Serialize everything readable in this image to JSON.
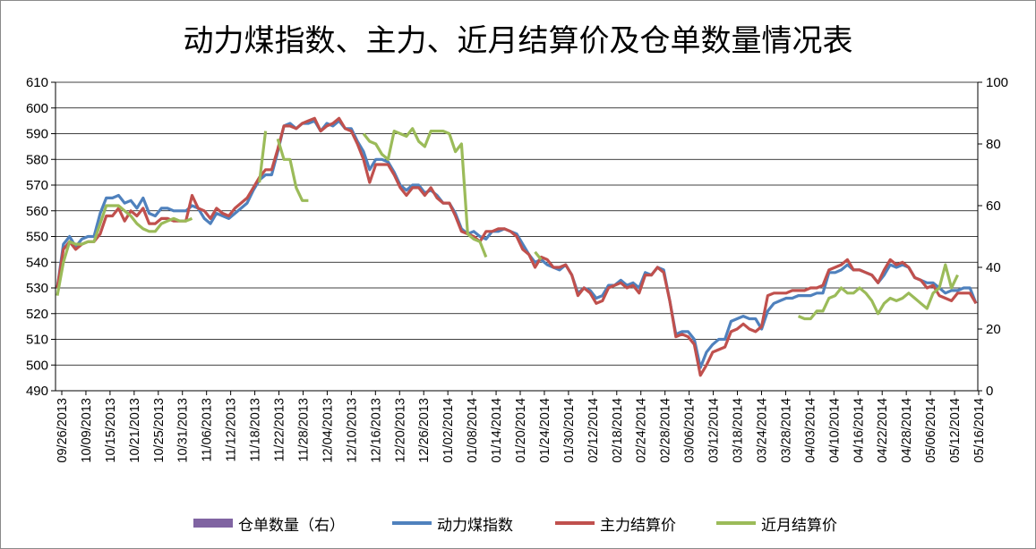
{
  "chart_data": {
    "type": "line",
    "title": "动力煤指数、主力、近月结算价及仓单数量情况表",
    "y_left": {
      "min": 490,
      "max": 610,
      "step": 10
    },
    "y_right": {
      "min": 0,
      "max": 100,
      "step": 20
    },
    "grid": true,
    "legend_position": "bottom",
    "x_labels": [
      "09/26/2013",
      "10/09/2013",
      "10/15/2013",
      "10/21/2013",
      "10/25/2013",
      "10/31/2013",
      "11/06/2013",
      "11/12/2013",
      "11/18/2013",
      "11/22/2013",
      "11/28/2013",
      "12/04/2013",
      "12/10/2013",
      "12/16/2013",
      "12/20/2013",
      "12/26/2013",
      "01/02/2014",
      "01/08/2014",
      "01/14/2014",
      "01/20/2014",
      "01/24/2014",
      "01/30/2014",
      "02/12/2014",
      "02/18/2014",
      "02/24/2014",
      "02/28/2014",
      "03/06/2014",
      "03/12/2014",
      "03/18/2014",
      "03/24/2014",
      "03/28/2014",
      "04/03/2014",
      "04/10/2014",
      "04/16/2014",
      "04/22/2014",
      "04/28/2014",
      "05/06/2014",
      "05/12/2014",
      "05/16/2014"
    ],
    "series": [
      {
        "name": "仓单数量（右）",
        "axis": "right",
        "color": "#8064A2",
        "values": []
      },
      {
        "name": "动力煤指数",
        "axis": "left",
        "color": "#4F81BD",
        "values": [
          530,
          547,
          550,
          546,
          549,
          550,
          550,
          559,
          565,
          565,
          566,
          563,
          564,
          561,
          565,
          559,
          558,
          561,
          561,
          560,
          560,
          560,
          562,
          561,
          557,
          555,
          559,
          558,
          557,
          559,
          561,
          563,
          568,
          572,
          574,
          574,
          583,
          593,
          594,
          592,
          594,
          594,
          595,
          591,
          594,
          593,
          595,
          592,
          592,
          587,
          583,
          576,
          580,
          580,
          579,
          575,
          570,
          568,
          570,
          570,
          567,
          568,
          566,
          563,
          563,
          559,
          553,
          551,
          552,
          550,
          549,
          552,
          552,
          553,
          552,
          551,
          547,
          543,
          540,
          541,
          539,
          538,
          537,
          539,
          535,
          528,
          530,
          529,
          526,
          527,
          531,
          531,
          533,
          531,
          532,
          530,
          536,
          535,
          538,
          537,
          525,
          512,
          513,
          513,
          510,
          499,
          505,
          508,
          510,
          510,
          517,
          518,
          519,
          518,
          518,
          514,
          521,
          524,
          525,
          526,
          526,
          527,
          527,
          527,
          528,
          528,
          536,
          536,
          537,
          539,
          537,
          537,
          536,
          535,
          532,
          535,
          539,
          538,
          539,
          538,
          534,
          533,
          532,
          532,
          530,
          528,
          529,
          529,
          530,
          530,
          524
        ]
      },
      {
        "name": "主力结算价",
        "axis": "left",
        "color": "#C0504D",
        "values": [
          530,
          545,
          548,
          545,
          547,
          548,
          548,
          551,
          558,
          558,
          561,
          556,
          560,
          558,
          561,
          555,
          555,
          557,
          557,
          556,
          556,
          556,
          566,
          561,
          560,
          557,
          561,
          559,
          558,
          561,
          563,
          565,
          569,
          573,
          576,
          576,
          584,
          593,
          593,
          592,
          594,
          595,
          596,
          591,
          593,
          594,
          596,
          592,
          591,
          586,
          580,
          571,
          578,
          578,
          578,
          574,
          569,
          566,
          569,
          569,
          566,
          569,
          565,
          563,
          563,
          558,
          552,
          551,
          550,
          548,
          552,
          552,
          553,
          553,
          552,
          550,
          545,
          543,
          538,
          542,
          541,
          538,
          538,
          539,
          535,
          527,
          530,
          528,
          524,
          525,
          530,
          531,
          532,
          530,
          531,
          528,
          535,
          535,
          538,
          536,
          525,
          511,
          512,
          511,
          508,
          496,
          500,
          505,
          506,
          507,
          513,
          514,
          516,
          514,
          513,
          515,
          527,
          528,
          528,
          528,
          529,
          529,
          529,
          530,
          530,
          531,
          537,
          538,
          539,
          541,
          537,
          537,
          536,
          535,
          532,
          537,
          541,
          539,
          540,
          538,
          534,
          533,
          530,
          531,
          527,
          526,
          525,
          528,
          528,
          528,
          524
        ]
      },
      {
        "name": "近月结算价",
        "axis": "left",
        "color": "#9BBB59",
        "segments": [
          {
            "start": 0,
            "values": [
              527,
              540,
              548,
              547,
              547,
              548,
              548,
              555,
              562,
              562,
              562,
              560,
              558,
              555,
              553,
              552,
              552,
              555,
              556,
              557,
              556,
              556,
              557
            ]
          },
          {
            "start": 33,
            "values": [
              571,
              591,
              null,
              588,
              580,
              580,
              569,
              564,
              564
            ]
          },
          {
            "start": 50,
            "values": [
              590,
              587,
              586,
              582,
              580,
              591,
              590,
              589,
              592,
              587,
              585,
              591,
              591,
              591,
              590,
              583,
              586,
              551,
              549,
              548,
              542
            ]
          },
          {
            "start": 78,
            "values": [
              544,
              541
            ]
          },
          {
            "start": 121,
            "values": [
              519,
              518,
              518,
              521,
              521,
              526,
              527,
              530,
              528,
              528,
              530,
              528,
              525,
              520,
              524,
              526,
              525,
              526,
              528,
              526,
              524,
              522,
              528,
              530,
              539,
              530,
              535
            ]
          }
        ]
      }
    ]
  }
}
